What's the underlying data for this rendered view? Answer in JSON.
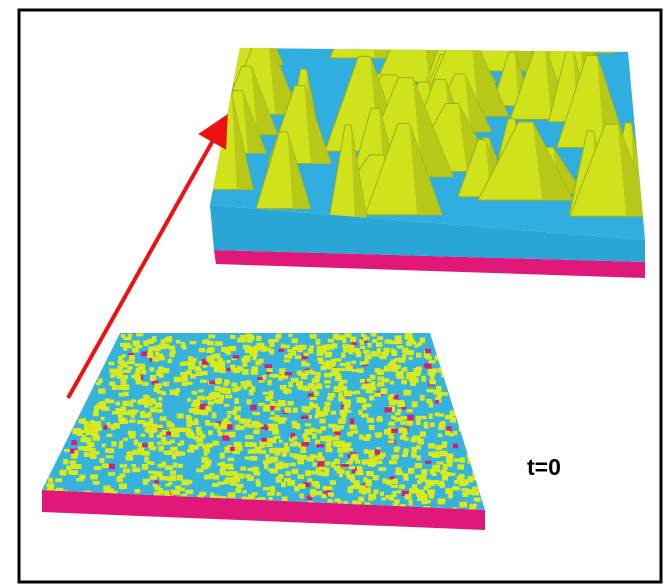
{
  "label": "t=0"
}
